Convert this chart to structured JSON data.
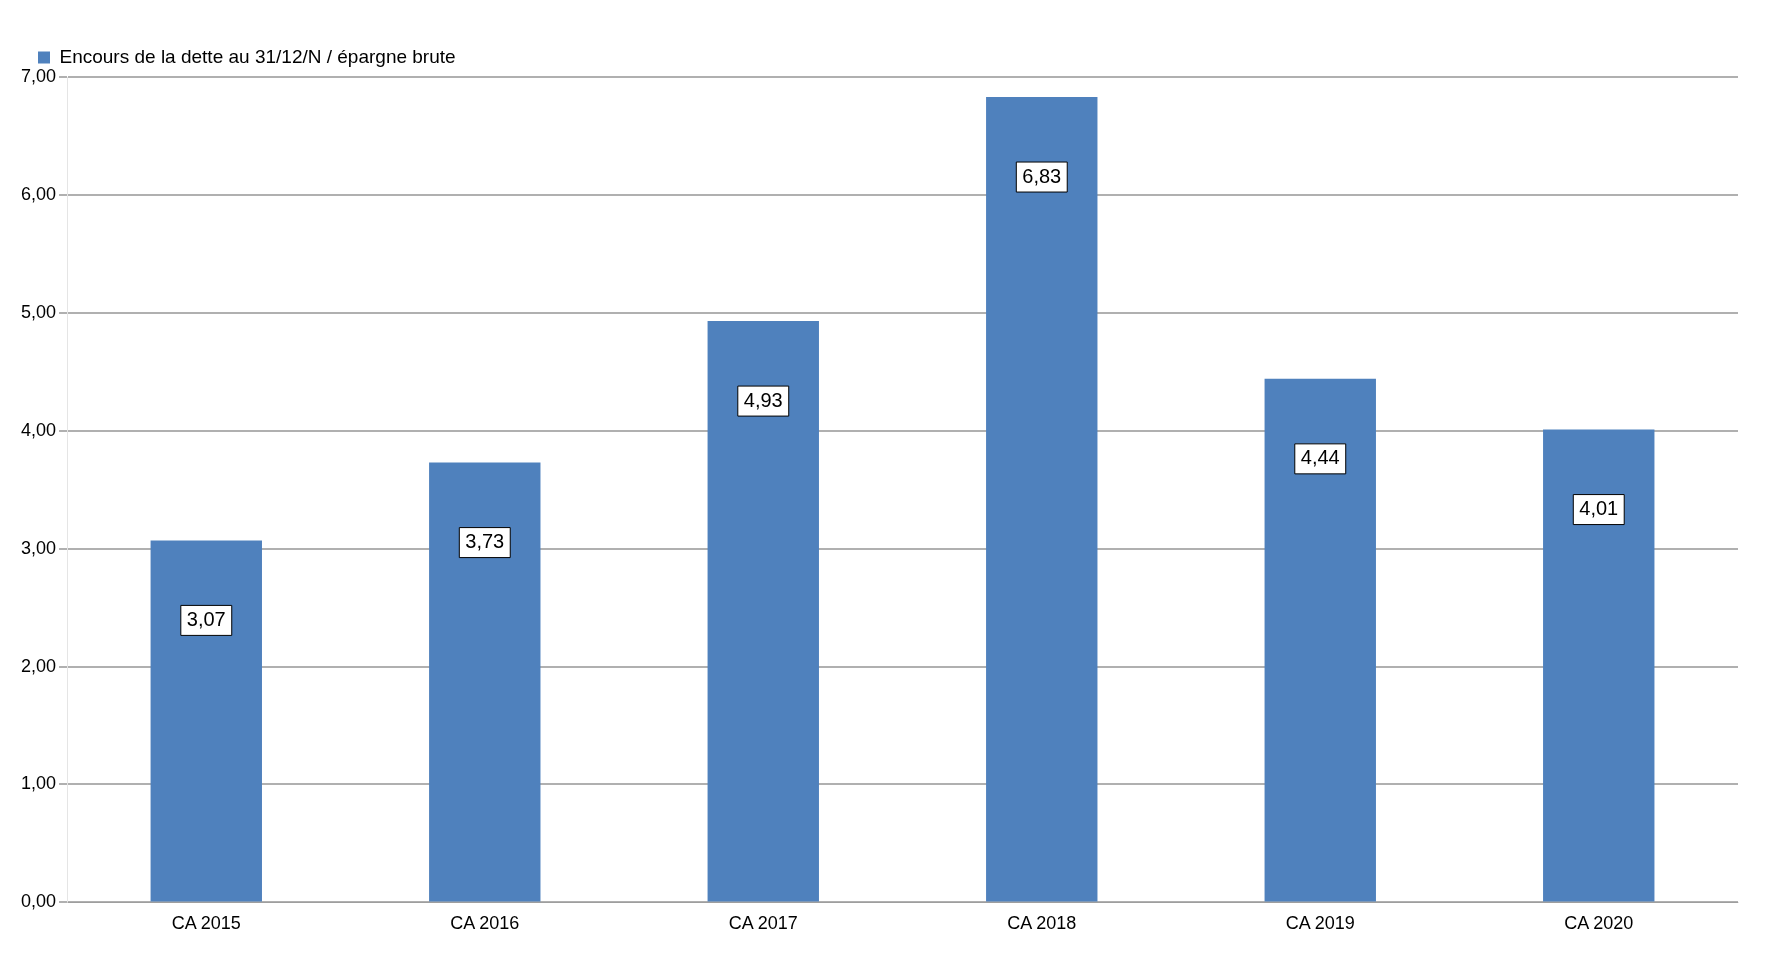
{
  "chart_data": {
    "type": "bar",
    "categories": [
      "CA 2015",
      "CA 2016",
      "CA 2017",
      "CA 2018",
      "CA 2019",
      "CA 2020"
    ],
    "series": [
      {
        "name": "Encours de la dette au 31/12/N / épargne brute",
        "color": "#4f81bd",
        "values": [
          3.07,
          3.73,
          4.93,
          6.83,
          4.44,
          4.01
        ],
        "value_labels": [
          "3,07",
          "3,73",
          "4,93",
          "6,83",
          "4,44",
          "4,01"
        ]
      }
    ],
    "ylim": [
      0,
      7
    ],
    "yticks": [
      {
        "value": 0,
        "label": "0,00"
      },
      {
        "value": 1,
        "label": "1,00"
      },
      {
        "value": 2,
        "label": "2,00"
      },
      {
        "value": 3,
        "label": "3,00"
      },
      {
        "value": 4,
        "label": "4,00"
      },
      {
        "value": 5,
        "label": "5,00"
      },
      {
        "value": 6,
        "label": "6,00"
      },
      {
        "value": 7,
        "label": "7,00"
      }
    ],
    "grid": "y",
    "legend": "top left"
  }
}
